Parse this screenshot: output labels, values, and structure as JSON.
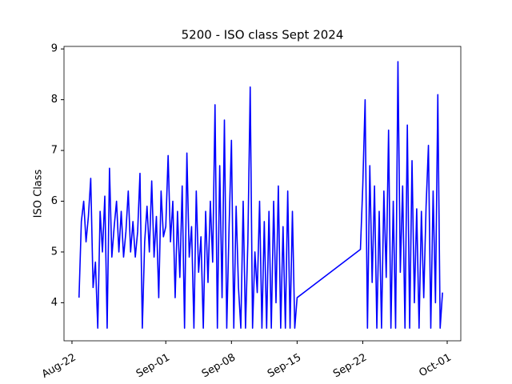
{
  "chart_data": {
    "type": "line",
    "title": "5200 - ISO class Sept 2024",
    "y_label": "ISO Class",
    "x": [
      "Aug-22 18:00",
      "Aug-23 00:00",
      "Aug-23 06:00",
      "Aug-23 12:00",
      "Aug-23 18:00",
      "Aug-24 00:00",
      "Aug-24 06:00",
      "Aug-24 12:00",
      "Aug-24 18:00",
      "Aug-25 00:00",
      "Aug-25 06:00",
      "Aug-25 12:00",
      "Aug-25 18:00",
      "Aug-26 00:00",
      "Aug-26 06:00",
      "Aug-26 12:00",
      "Aug-26 18:00",
      "Aug-27 00:00",
      "Aug-27 06:00",
      "Aug-27 12:00",
      "Aug-27 18:00",
      "Aug-28 00:00",
      "Aug-28 06:00",
      "Aug-28 12:00",
      "Aug-28 18:00",
      "Aug-29 00:00",
      "Aug-29 06:00",
      "Aug-29 12:00",
      "Aug-29 18:00",
      "Aug-30 00:00",
      "Aug-30 06:00",
      "Aug-30 12:00",
      "Aug-30 18:00",
      "Aug-31 00:00",
      "Aug-31 06:00",
      "Aug-31 12:00",
      "Aug-31 18:00",
      "Sep-01 00:00",
      "Sep-01 06:00",
      "Sep-01 12:00",
      "Sep-01 18:00",
      "Sep-02 00:00",
      "Sep-02 06:00",
      "Sep-02 12:00",
      "Sep-02 18:00",
      "Sep-03 00:00",
      "Sep-03 06:00",
      "Sep-03 12:00",
      "Sep-03 18:00",
      "Sep-04 00:00",
      "Sep-04 06:00",
      "Sep-04 12:00",
      "Sep-04 18:00",
      "Sep-05 00:00",
      "Sep-05 06:00",
      "Sep-05 12:00",
      "Sep-05 18:00",
      "Sep-06 00:00",
      "Sep-06 06:00",
      "Sep-06 12:00",
      "Sep-06 18:00",
      "Sep-07 00:00",
      "Sep-07 06:00",
      "Sep-07 12:00",
      "Sep-07 18:00",
      "Sep-08 00:00",
      "Sep-08 06:00",
      "Sep-08 12:00",
      "Sep-08 18:00",
      "Sep-09 00:00",
      "Sep-09 06:00",
      "Sep-09 12:00",
      "Sep-09 18:00",
      "Sep-10 00:00",
      "Sep-10 06:00",
      "Sep-10 12:00",
      "Sep-10 18:00",
      "Sep-11 00:00",
      "Sep-11 06:00",
      "Sep-11 12:00",
      "Sep-11 18:00",
      "Sep-12 00:00",
      "Sep-12 06:00",
      "Sep-12 12:00",
      "Sep-12 18:00",
      "Sep-13 00:00",
      "Sep-13 06:00",
      "Sep-13 12:00",
      "Sep-13 18:00",
      "Sep-14 00:00",
      "Sep-14 06:00",
      "Sep-14 12:00",
      "Sep-14 18:00",
      "Sep-15 00:00",
      "Sep-21 18:00",
      "Sep-22 00:00",
      "Sep-22 06:00",
      "Sep-22 12:00",
      "Sep-22 18:00",
      "Sep-23 00:00",
      "Sep-23 06:00",
      "Sep-23 12:00",
      "Sep-23 18:00",
      "Sep-24 00:00",
      "Sep-24 06:00",
      "Sep-24 12:00",
      "Sep-24 18:00",
      "Sep-25 00:00",
      "Sep-25 06:00",
      "Sep-25 12:00",
      "Sep-25 18:00",
      "Sep-26 00:00",
      "Sep-26 06:00",
      "Sep-26 12:00",
      "Sep-26 18:00",
      "Sep-27 00:00",
      "Sep-27 06:00",
      "Sep-27 12:00",
      "Sep-27 18:00",
      "Sep-28 00:00",
      "Sep-28 06:00",
      "Sep-28 12:00",
      "Sep-28 18:00",
      "Sep-29 00:00",
      "Sep-29 06:00",
      "Sep-29 12:00",
      "Sep-29 18:00",
      "Sep-30 00:00",
      "Sep-30 06:00",
      "Sep-30 12:00"
    ],
    "series": [
      {
        "color": "#0000ff",
        "values": [
          4.1,
          5.6,
          6.0,
          5.2,
          5.7,
          6.45,
          4.3,
          4.8,
          3.5,
          5.8,
          5.0,
          6.1,
          3.5,
          6.65,
          4.9,
          5.5,
          6.0,
          5.0,
          5.8,
          4.9,
          5.4,
          6.2,
          5.0,
          5.6,
          4.9,
          5.4,
          6.55,
          3.5,
          5.2,
          5.9,
          5.0,
          6.4,
          4.9,
          5.7,
          4.1,
          6.2,
          5.3,
          5.5,
          6.9,
          5.2,
          6.0,
          4.1,
          5.8,
          4.5,
          6.3,
          3.5,
          6.95,
          4.9,
          5.5,
          3.5,
          6.2,
          4.6,
          5.3,
          3.5,
          5.8,
          4.4,
          6.0,
          4.8,
          7.9,
          3.5,
          6.7,
          4.1,
          7.6,
          3.5,
          5.5,
          7.2,
          3.5,
          5.9,
          4.3,
          3.5,
          6.0,
          3.5,
          5.2,
          8.25,
          3.5,
          5.0,
          4.2,
          6.0,
          3.5,
          5.6,
          3.5,
          5.8,
          3.5,
          6.0,
          4.0,
          6.3,
          3.5,
          5.5,
          3.5,
          6.2,
          3.5,
          5.8,
          3.5,
          4.1,
          5.05,
          6.3,
          8.0,
          3.5,
          6.7,
          4.4,
          6.3,
          3.5,
          5.8,
          3.5,
          6.2,
          4.5,
          7.4,
          3.5,
          6.0,
          3.5,
          8.75,
          4.6,
          6.3,
          3.5,
          7.5,
          3.5,
          6.8,
          4.0,
          5.85,
          3.5,
          5.8,
          4.1,
          5.9,
          7.1,
          3.5,
          6.2,
          4.0,
          8.1,
          3.5,
          4.2
        ]
      }
    ],
    "xlim": [
      "Aug-21 03:36",
      "Oct-02 10:48"
    ],
    "xticks": [
      "Aug-22",
      "Sep-01",
      "Sep-08",
      "Sep-15",
      "Sep-22",
      "Oct-01"
    ],
    "ylim": [
      3.25,
      9.05
    ],
    "yticks": [
      4,
      5,
      6,
      7,
      8,
      9
    ]
  }
}
